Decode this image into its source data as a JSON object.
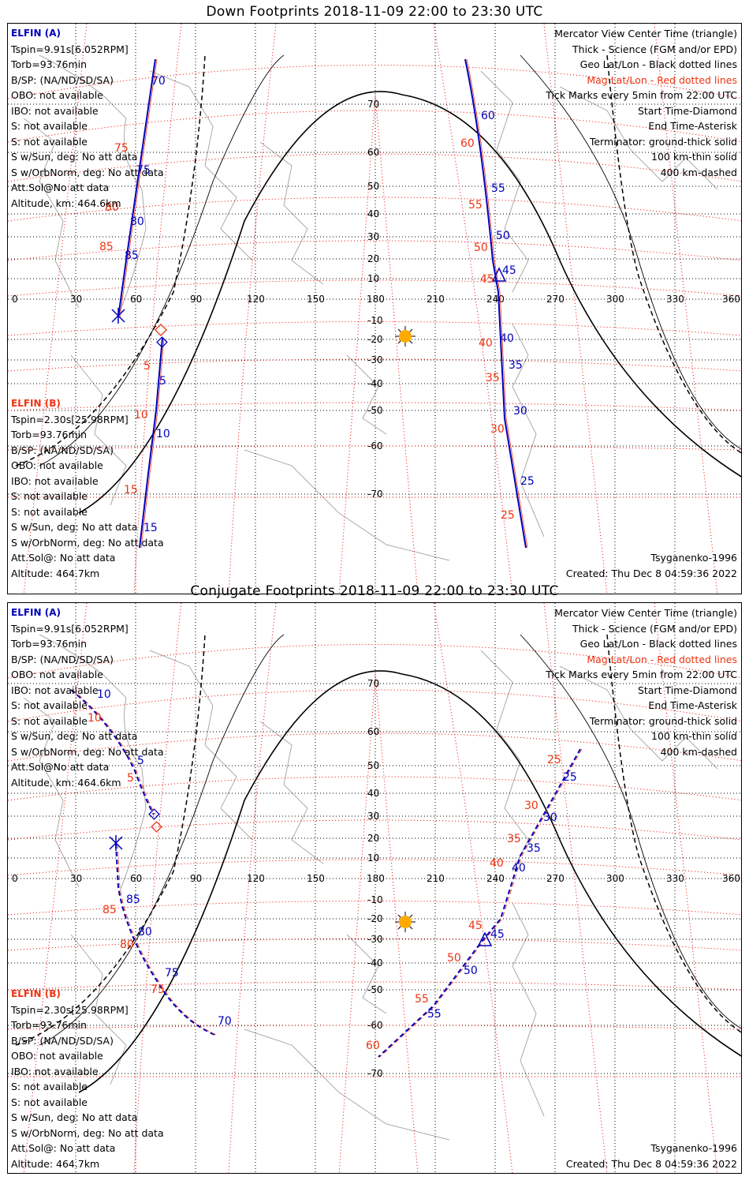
{
  "panels": [
    {
      "title": "Down Footprints 2018-11-09 22:00 to 23:30 UTC",
      "elfin_a": {
        "name": "ELFIN (A)",
        "lines": [
          "Tspin=9.91s[6.052RPM]",
          "Torb=93.76min",
          "B/SP: (NA/ND/SD/SA)",
          "OBO: not available",
          "IBO: not available",
          "S: not available",
          "S: not available",
          "S w/Sun, deg: No att data",
          "S w/OrbNorm, deg: No att data",
          "Att.Sol@No att data",
          "Altitude, km: 464.6km"
        ]
      },
      "elfin_b": {
        "name": "ELFIN (B)",
        "lines": [
          "Tspin=2.30s[25.98RPM]",
          "Torb=93.76min",
          "B/SP: (NA/ND/SD/SA)",
          "OBO: not available",
          "IBO: not available",
          "S: not available",
          "S: not available",
          "S w/Sun, deg: No att data",
          "S w/OrbNorm, deg: No att data",
          "Att.Sol@: No att data",
          "Altitude: 464.7km"
        ]
      },
      "legend": [
        "Mercator View Center Time (triangle)",
        "Thick - Science (FGM and/or EPD)",
        "Geo Lat/Lon - Black dotted lines",
        "Mag Lat/Lon - Red dotted lines",
        "Tick Marks every 5min from 22:00 UTC",
        "Start Time-Diamond",
        "End Time-Asterisk",
        "Terminator: ground-thick solid",
        "100 km-thin solid",
        "400 km-dashed"
      ],
      "model": "Tsyganenko-1996",
      "created": "Created: Thu Dec  8 04:59:36 2022",
      "lon_ticks": [
        "0",
        "30",
        "60",
        "90",
        "120",
        "150",
        "180",
        "210",
        "240",
        "270",
        "300",
        "330",
        "360"
      ],
      "lat_ticks": [
        "70",
        "60",
        "50",
        "40",
        "30",
        "20",
        "10",
        "-10",
        "-20",
        "-30",
        "-40",
        "-50",
        "-60",
        "-70"
      ],
      "track_labels_blue": [
        "70",
        "75",
        "80",
        "85",
        "5",
        "10",
        "15",
        "60",
        "55",
        "50",
        "45",
        "40",
        "35",
        "30",
        "25"
      ],
      "track_labels_red": [
        "75",
        "80",
        "85",
        "5",
        "10",
        "15",
        "60",
        "55",
        "50",
        "45",
        "40",
        "35",
        "30",
        "25"
      ]
    },
    {
      "title": "Conjugate Footprints 2018-11-09 22:00 to 23:30 UTC",
      "elfin_a": {
        "name": "ELFIN (A)",
        "lines": [
          "Tspin=9.91s[6.052RPM]",
          "Torb=93.76min",
          "B/SP: (NA/ND/SD/SA)",
          "OBO: not available",
          "IBO: not available",
          "S: not available",
          "S: not available",
          "S w/Sun, deg: No att data",
          "S w/OrbNorm, deg: No att data",
          "Att.Sol@No att data",
          "Altitude, km: 464.6km"
        ]
      },
      "elfin_b": {
        "name": "ELFIN (B)",
        "lines": [
          "Tspin=2.30s[25.98RPM]",
          "Torb=93.76min",
          "B/SP: (NA/ND/SD/SA)",
          "OBO: not available",
          "IBO: not available",
          "S: not available",
          "S: not available",
          "S w/Sun, deg: No att data",
          "S w/OrbNorm, deg: No att data",
          "Att.Sol@: No att data",
          "Altitude: 464.7km"
        ]
      },
      "legend": [
        "Mercator View Center Time (triangle)",
        "Thick - Science (FGM and/or EPD)",
        "Geo Lat/Lon - Black dotted lines",
        "Mag Lat/Lon - Red dotted lines",
        "Tick Marks every 5min from 22:00 UTC",
        "Start Time-Diamond",
        "End Time-Asterisk",
        "Terminator: ground-thick solid",
        "100 km-thin solid",
        "400 km-dashed"
      ],
      "model": "Tsyganenko-1996",
      "created": "Created: Thu Dec  8 04:59:36 2022",
      "lon_ticks": [
        "0",
        "30",
        "60",
        "90",
        "120",
        "150",
        "180",
        "210",
        "240",
        "270",
        "300",
        "330",
        "360"
      ],
      "lat_ticks": [
        "70",
        "60",
        "50",
        "40",
        "30",
        "20",
        "10",
        "-10",
        "-20",
        "-30",
        "-40",
        "-50",
        "-60",
        "-70"
      ],
      "track_labels_blue": [
        "10",
        "5",
        "85",
        "80",
        "75",
        "70",
        "25",
        "30",
        "35",
        "40",
        "45",
        "50",
        "55"
      ],
      "track_labels_red": [
        "10",
        "5",
        "85",
        "80",
        "75",
        "25",
        "30",
        "35",
        "40",
        "45",
        "50",
        "55",
        "60"
      ]
    }
  ],
  "colors": {
    "sat_a": "#0000bb",
    "sat_b": "#ee3311",
    "mag_grid": "#ee0000",
    "geo_grid": "#000000",
    "land": "#aaaaaa",
    "sun": "#ffaa00"
  }
}
